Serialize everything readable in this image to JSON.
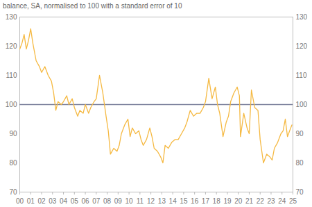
{
  "chart_data": {
    "type": "line",
    "title": "balance, SA, normalised to 100 with a standard error of 10",
    "x": [
      2000.0,
      2000.2,
      2000.4,
      2000.6,
      2000.8,
      2001.0,
      2001.2,
      2001.5,
      2001.8,
      2002.0,
      2002.3,
      2002.6,
      2002.9,
      2003.1,
      2003.3,
      2003.5,
      2003.8,
      2004.0,
      2004.3,
      2004.5,
      2004.8,
      2005.0,
      2005.3,
      2005.5,
      2005.8,
      2006.0,
      2006.3,
      2006.5,
      2006.8,
      2007.0,
      2007.3,
      2007.6,
      2007.9,
      2008.1,
      2008.3,
      2008.6,
      2008.9,
      2009.1,
      2009.3,
      2009.6,
      2009.9,
      2010.1,
      2010.3,
      2010.6,
      2010.9,
      2011.1,
      2011.3,
      2011.6,
      2011.9,
      2012.1,
      2012.3,
      2012.6,
      2012.9,
      2013.1,
      2013.3,
      2013.6,
      2013.9,
      2014.2,
      2014.5,
      2014.8,
      2015.1,
      2015.3,
      2015.6,
      2015.9,
      2016.2,
      2016.5,
      2016.8,
      2017.0,
      2017.3,
      2017.6,
      2017.9,
      2018.1,
      2018.3,
      2018.6,
      2018.9,
      2019.1,
      2019.3,
      2019.6,
      2019.9,
      2020.1,
      2020.2,
      2020.5,
      2020.8,
      2021.0,
      2021.2,
      2021.5,
      2021.8,
      2022.0,
      2022.3,
      2022.6,
      2022.9,
      2023.1,
      2023.3,
      2023.6,
      2023.9,
      2024.1,
      2024.3,
      2024.5,
      2024.7,
      2024.9
    ],
    "values": [
      119,
      121,
      124,
      119,
      122,
      126,
      121,
      115,
      113,
      111,
      113,
      110,
      108,
      104,
      98,
      101,
      100,
      101,
      103,
      100,
      102,
      99,
      96,
      98,
      97,
      100,
      97,
      99,
      101,
      102,
      110,
      104,
      96,
      91,
      83,
      85,
      84,
      86,
      90,
      93,
      95,
      89,
      92,
      90,
      91,
      88,
      86,
      88,
      92,
      89,
      85,
      84,
      82,
      80,
      86,
      85,
      87,
      88,
      88,
      90,
      92,
      94,
      98,
      96,
      97,
      97,
      99,
      101,
      109,
      102,
      106,
      100,
      97,
      89,
      94,
      96,
      101,
      104,
      106,
      103,
      89,
      97,
      92,
      90,
      105,
      99,
      98,
      88,
      80,
      83,
      82,
      81,
      85,
      87,
      90,
      91,
      95,
      89,
      91,
      93
    ],
    "color": "#f5b942",
    "reference_line": 100,
    "xlim": [
      2000,
      2025
    ],
    "xticks": [
      {
        "value": 2000,
        "label": "00"
      },
      {
        "value": 2001,
        "label": "01"
      },
      {
        "value": 2002,
        "label": "02"
      },
      {
        "value": 2003,
        "label": "03"
      },
      {
        "value": 2004,
        "label": "04"
      },
      {
        "value": 2005,
        "label": "05"
      },
      {
        "value": 2006,
        "label": "06"
      },
      {
        "value": 2007,
        "label": "07"
      },
      {
        "value": 2008,
        "label": "08"
      },
      {
        "value": 2009,
        "label": "09"
      },
      {
        "value": 2010,
        "label": "10"
      },
      {
        "value": 2011,
        "label": "11"
      },
      {
        "value": 2012,
        "label": "12"
      },
      {
        "value": 2013,
        "label": "13"
      },
      {
        "value": 2014,
        "label": "14"
      },
      {
        "value": 2015,
        "label": "15"
      },
      {
        "value": 2016,
        "label": "16"
      },
      {
        "value": 2017,
        "label": "17"
      },
      {
        "value": 2018,
        "label": "18"
      },
      {
        "value": 2019,
        "label": "19"
      },
      {
        "value": 2020,
        "label": "20"
      },
      {
        "value": 2021,
        "label": "21"
      },
      {
        "value": 2022,
        "label": "22"
      },
      {
        "value": 2023,
        "label": "23"
      },
      {
        "value": 2024,
        "label": "24"
      },
      {
        "value": 2025,
        "label": "25"
      }
    ],
    "ylim": [
      70,
      130
    ],
    "yticks": [
      70,
      80,
      90,
      100,
      110,
      120,
      130
    ],
    "grid": false
  }
}
